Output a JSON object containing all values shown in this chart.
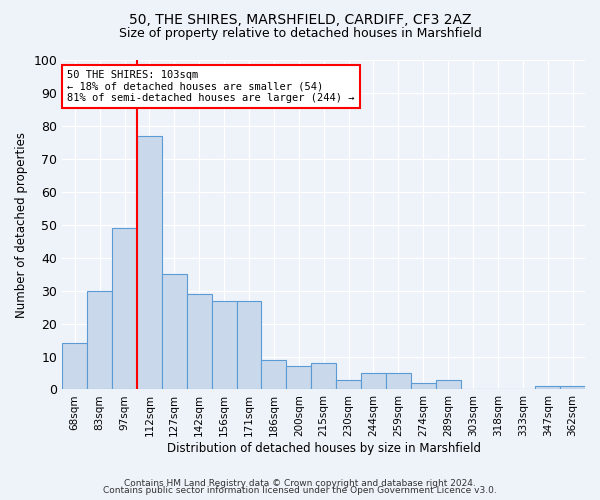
{
  "title1": "50, THE SHIRES, MARSHFIELD, CARDIFF, CF3 2AZ",
  "title2": "Size of property relative to detached houses in Marshfield",
  "xlabel": "Distribution of detached houses by size in Marshfield",
  "ylabel": "Number of detached properties",
  "categories": [
    "68sqm",
    "83sqm",
    "97sqm",
    "112sqm",
    "127sqm",
    "142sqm",
    "156sqm",
    "171sqm",
    "186sqm",
    "200sqm",
    "215sqm",
    "230sqm",
    "244sqm",
    "259sqm",
    "274sqm",
    "289sqm",
    "303sqm",
    "318sqm",
    "333sqm",
    "347sqm",
    "362sqm"
  ],
  "values": [
    14,
    30,
    49,
    77,
    35,
    29,
    27,
    27,
    9,
    7,
    8,
    3,
    5,
    5,
    2,
    3,
    0,
    0,
    0,
    1,
    1
  ],
  "bar_color": "#c9d9eb",
  "bar_edge_color": "#5b9bd5",
  "vline_x": 2.5,
  "annotation_text_line1": "50 THE SHIRES: 103sqm",
  "annotation_text_line2": "← 18% of detached houses are smaller (54)",
  "annotation_text_line3": "81% of semi-detached houses are larger (244) →",
  "annotation_box_color": "white",
  "annotation_box_edge_color": "red",
  "vline_color": "red",
  "footer1": "Contains HM Land Registry data © Crown copyright and database right 2024.",
  "footer2": "Contains public sector information licensed under the Open Government Licence v3.0.",
  "ylim": [
    0,
    100
  ],
  "bg_color": "#eef2f9"
}
